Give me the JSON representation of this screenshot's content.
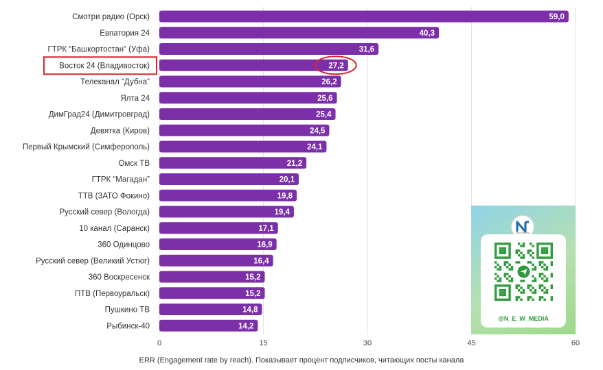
{
  "chart_data": {
    "type": "bar",
    "orientation": "horizontal",
    "categories": [
      "Смотри радио (Орск)",
      "Евпатория 24",
      "ГТРК “Башкортостан” (Уфа)",
      "Восток 24 (Владивосток)",
      "Телеканал “Дубна”",
      "Ялта 24",
      "ДимГрад24 (Димитровград)",
      "Девятка (Киров)",
      "Первый Крымский (Симферополь)",
      "Омск ТВ",
      "ГТРК “Магадан”",
      "ТТВ (ЗАТО Фокино)",
      "Русский север (Вологда)",
      "10 канал (Саранск)",
      "360 Одинцово",
      "Русский север (Великий Устюг)",
      "360 Воскресенск",
      "ПТВ (Первоуральск)",
      "Пушкино ТВ",
      "Рыбинск-40"
    ],
    "values": [
      59.0,
      40.3,
      31.6,
      27.2,
      26.2,
      25.6,
      25.4,
      24.5,
      24.1,
      21.2,
      20.1,
      19.8,
      19.4,
      17.1,
      16.9,
      16.4,
      15.2,
      15.2,
      14.8,
      14.2
    ],
    "value_labels": [
      "59,0",
      "40,3",
      "31,6",
      "27,2",
      "26,2",
      "25,6",
      "25,4",
      "24,5",
      "24,1",
      "21,2",
      "20,1",
      "19,8",
      "19,4",
      "17,1",
      "16,9",
      "16,4",
      "15,2",
      "15,2",
      "14,8",
      "14,2"
    ],
    "xlim": [
      0,
      60
    ],
    "xticks": [
      0,
      15,
      30,
      45,
      60
    ],
    "xtick_labels": [
      "0",
      "15",
      "30",
      "45",
      "60"
    ],
    "xlabel": "ERR (Engagement rate by reach). Показывает процент подписчиков, читающих посты канала",
    "ylabel": "",
    "title": "",
    "grid": "vertical",
    "bar_color": "#7b2fa8",
    "highlighted_category": "Восток 24 (Владивосток)",
    "highlight_box_color": "#d9262b",
    "highlight_circle_color": "#d9262b"
  },
  "watermark": {
    "handle": "@N_E_W_MEDIA",
    "logo_text": "New Media",
    "qr_center_icon": "telegram-icon"
  }
}
